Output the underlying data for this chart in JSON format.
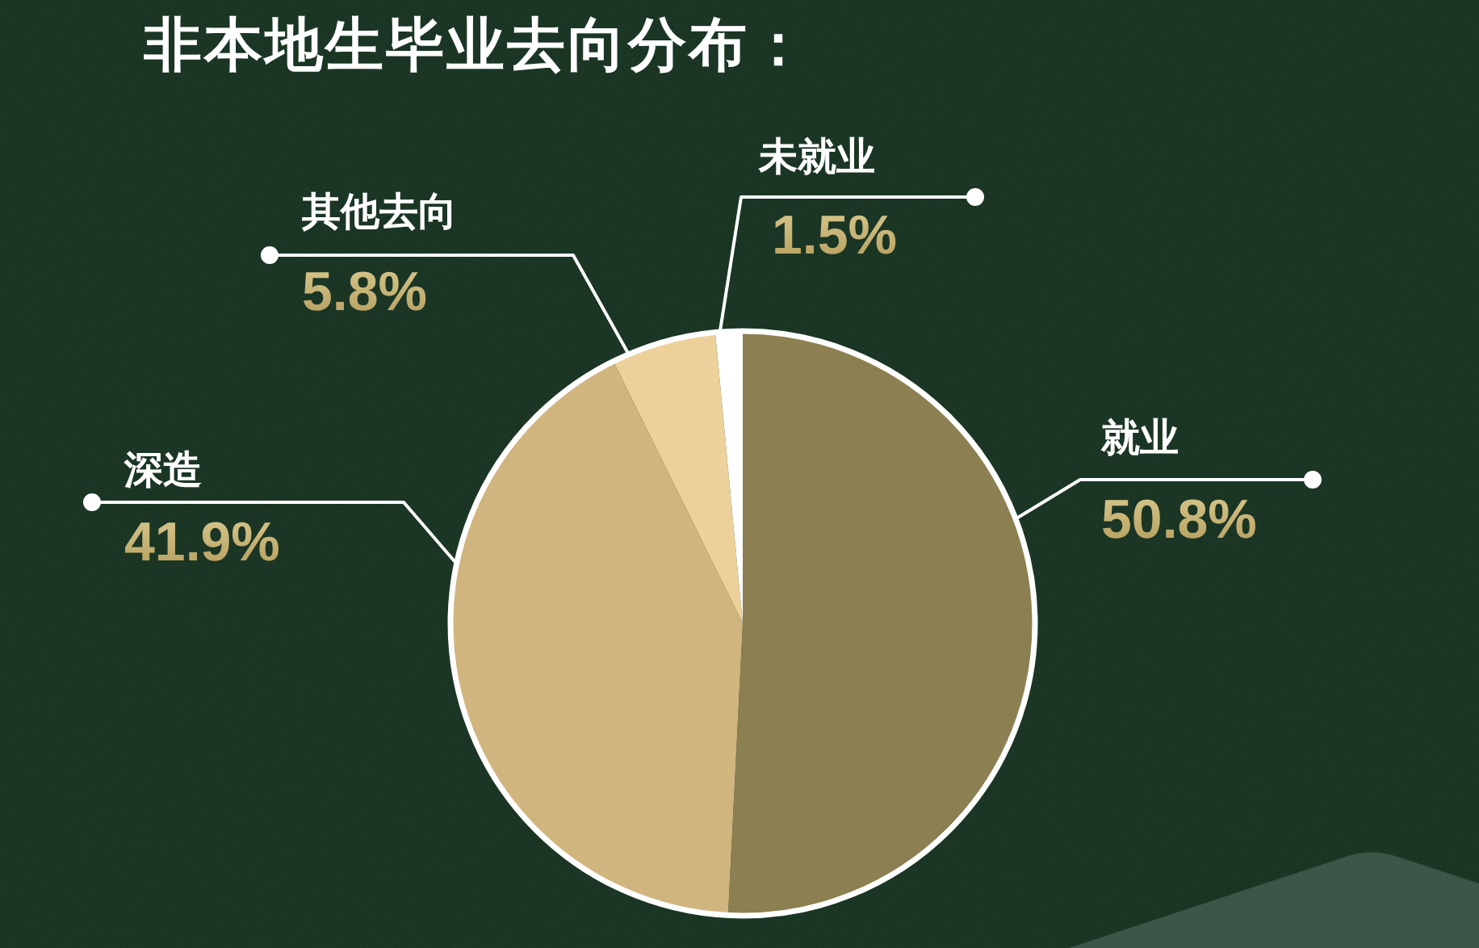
{
  "chart_data": {
    "type": "pie",
    "title": "非本地生毕业去向分布：",
    "categories": [
      "就业",
      "深造",
      "其他去向",
      "未就业"
    ],
    "values": [
      50.8,
      41.9,
      5.8,
      1.5
    ],
    "colors": [
      "#8c7f51",
      "#d1b57f",
      "#ecd19b",
      "#ffffff"
    ],
    "value_labels": [
      "50.8%",
      "41.9%",
      "5.8%",
      "1.5%"
    ]
  }
}
